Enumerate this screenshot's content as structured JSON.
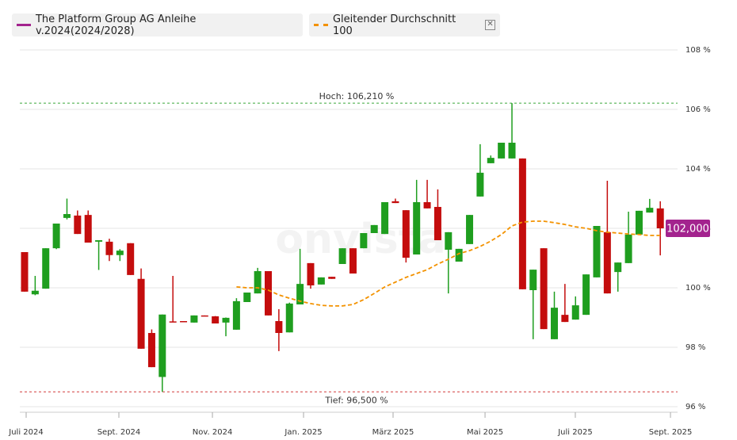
{
  "chart_data": {
    "type": "candlestick",
    "watermark": "onvista",
    "ylim": [
      96,
      108
    ],
    "yticks": [
      {
        "value": 96,
        "label": "96 %"
      },
      {
        "value": 98,
        "label": "98 %"
      },
      {
        "value": 100,
        "label": "100 %"
      },
      {
        "value": 102,
        "label": "102 %"
      },
      {
        "value": 104,
        "label": "104 %"
      },
      {
        "value": 106,
        "label": "106 %"
      },
      {
        "value": 108,
        "label": "108 %"
      }
    ],
    "grid": true,
    "categories": [
      null,
      null,
      null,
      null,
      null,
      null,
      null,
      null,
      null,
      null,
      null,
      null,
      null,
      null,
      null,
      null,
      null,
      null,
      null,
      null,
      null,
      null,
      null,
      null,
      null,
      null,
      null,
      null,
      null,
      null,
      null,
      null,
      null,
      null,
      null,
      null,
      null,
      null,
      null,
      null,
      null,
      null,
      null,
      null,
      null,
      null,
      null,
      null,
      null,
      null,
      null,
      null,
      null,
      null,
      null,
      null,
      null,
      null,
      null,
      null,
      null
    ],
    "xticks": [
      {
        "value": 0.15,
        "label": "Juli 2024"
      },
      {
        "value": 8.9,
        "label": "Sept. 2024"
      },
      {
        "value": 17.73,
        "label": "Nov. 2024"
      },
      {
        "value": 26.33,
        "label": "Jan. 2025"
      },
      {
        "value": 34.78,
        "label": "März 2025"
      },
      {
        "value": 43.46,
        "label": "Mai 2025"
      },
      {
        "value": 51.98,
        "label": "Juli 2025"
      },
      {
        "value": 60.96,
        "label": "Sept. 2025"
      }
    ],
    "series": [
      {
        "name": "The Platform Group AG Anleihe v.2024(2024/2028)",
        "color": "#a3238e",
        "up_color": "#1f9e1f",
        "down_color": "#c40d0d",
        "open": [
          101.2,
          99.78,
          99.97,
          101.33,
          102.35,
          102.43,
          102.45,
          101.55,
          101.55,
          101.1,
          101.5,
          100.3,
          98.48,
          97.0,
          98.87,
          98.88,
          98.83,
          99.07,
          99.04,
          98.83,
          98.59,
          99.52,
          99.81,
          100.56,
          98.88,
          98.5,
          99.44,
          100.83,
          100.11,
          100.37,
          100.8,
          101.33,
          101.33,
          101.84,
          101.81,
          102.91,
          102.61,
          101.12,
          102.88,
          102.72,
          101.28,
          100.88,
          101.47,
          103.07,
          104.19,
          104.35,
          104.35,
          104.35,
          99.92,
          101.33,
          98.27,
          99.09,
          98.93,
          99.09,
          100.35,
          101.87,
          100.53,
          100.83,
          101.79,
          102.53,
          102.67
        ],
        "high": [
          101.2,
          100.4,
          101.33,
          102.16,
          103.0,
          102.6,
          102.6,
          101.6,
          101.65,
          101.3,
          101.5,
          100.65,
          98.6,
          99.1,
          100.4,
          98.88,
          99.07,
          99.07,
          99.05,
          99.0,
          99.65,
          99.84,
          100.67,
          100.56,
          99.28,
          99.5,
          101.31,
          100.83,
          100.35,
          100.37,
          101.33,
          101.33,
          101.84,
          102.11,
          102.88,
          103.0,
          102.61,
          103.63,
          103.63,
          103.31,
          101.87,
          101.31,
          102.45,
          104.83,
          104.45,
          104.88,
          106.21,
          104.35,
          100.61,
          101.33,
          99.87,
          100.13,
          99.71,
          100.45,
          102.08,
          103.6,
          100.85,
          102.56,
          102.59,
          102.99,
          102.91
        ],
        "low": [
          99.87,
          99.75,
          99.97,
          101.3,
          102.3,
          101.81,
          101.52,
          100.6,
          100.9,
          100.9,
          100.43,
          97.95,
          97.33,
          96.5,
          98.85,
          98.85,
          98.83,
          99.04,
          98.8,
          98.37,
          98.59,
          99.52,
          99.81,
          99.07,
          97.87,
          98.5,
          99.44,
          99.97,
          100.11,
          100.3,
          100.8,
          100.48,
          101.33,
          101.84,
          101.81,
          102.85,
          100.85,
          101.12,
          102.67,
          101.6,
          99.81,
          100.88,
          101.47,
          103.07,
          104.19,
          104.35,
          104.35,
          99.95,
          98.27,
          98.61,
          98.27,
          98.85,
          98.93,
          99.09,
          100.35,
          99.81,
          99.87,
          100.83,
          101.79,
          102.53,
          101.09
        ],
        "close": [
          99.87,
          99.9,
          101.33,
          102.16,
          102.48,
          101.81,
          101.52,
          101.6,
          101.1,
          101.25,
          100.43,
          97.95,
          97.33,
          99.1,
          98.85,
          98.85,
          99.07,
          99.04,
          98.8,
          98.99,
          99.55,
          99.84,
          100.56,
          99.07,
          98.48,
          99.47,
          100.13,
          100.08,
          100.35,
          100.3,
          101.33,
          100.48,
          101.84,
          102.11,
          102.88,
          102.85,
          101.01,
          102.88,
          102.67,
          101.6,
          101.87,
          101.31,
          102.45,
          103.87,
          104.37,
          104.88,
          104.88,
          99.95,
          100.61,
          98.61,
          99.33,
          98.85,
          99.41,
          100.45,
          102.08,
          99.81,
          100.85,
          101.79,
          102.59,
          102.69,
          102.0
        ]
      },
      {
        "name": "Gleitender Durchschnitt 100",
        "color": "#f39200",
        "dashed": true,
        "values": [
          null,
          null,
          null,
          null,
          null,
          null,
          null,
          null,
          null,
          null,
          null,
          null,
          null,
          null,
          null,
          null,
          null,
          null,
          null,
          null,
          100.03,
          100.0,
          100.0,
          99.92,
          99.76,
          99.65,
          99.55,
          99.47,
          99.41,
          99.39,
          99.39,
          99.44,
          99.6,
          99.81,
          100.03,
          100.19,
          100.35,
          100.48,
          100.61,
          100.8,
          100.96,
          101.15,
          101.25,
          101.39,
          101.57,
          101.79,
          102.08,
          102.21,
          102.24,
          102.24,
          102.19,
          102.13,
          102.05,
          102.0,
          101.92,
          101.87,
          101.84,
          101.81,
          101.79,
          101.76,
          101.76
        ]
      }
    ],
    "last_value": 102.0,
    "last_value_label": "102,000",
    "last_value_color": "#a3238e",
    "annotations": [
      {
        "text": "Hoch: 106,210 %",
        "value": 106.21,
        "color": "#3aa63a"
      },
      {
        "text": "Tief: 96,500 %",
        "value": 96.5,
        "color": "#d23c3c"
      }
    ]
  }
}
